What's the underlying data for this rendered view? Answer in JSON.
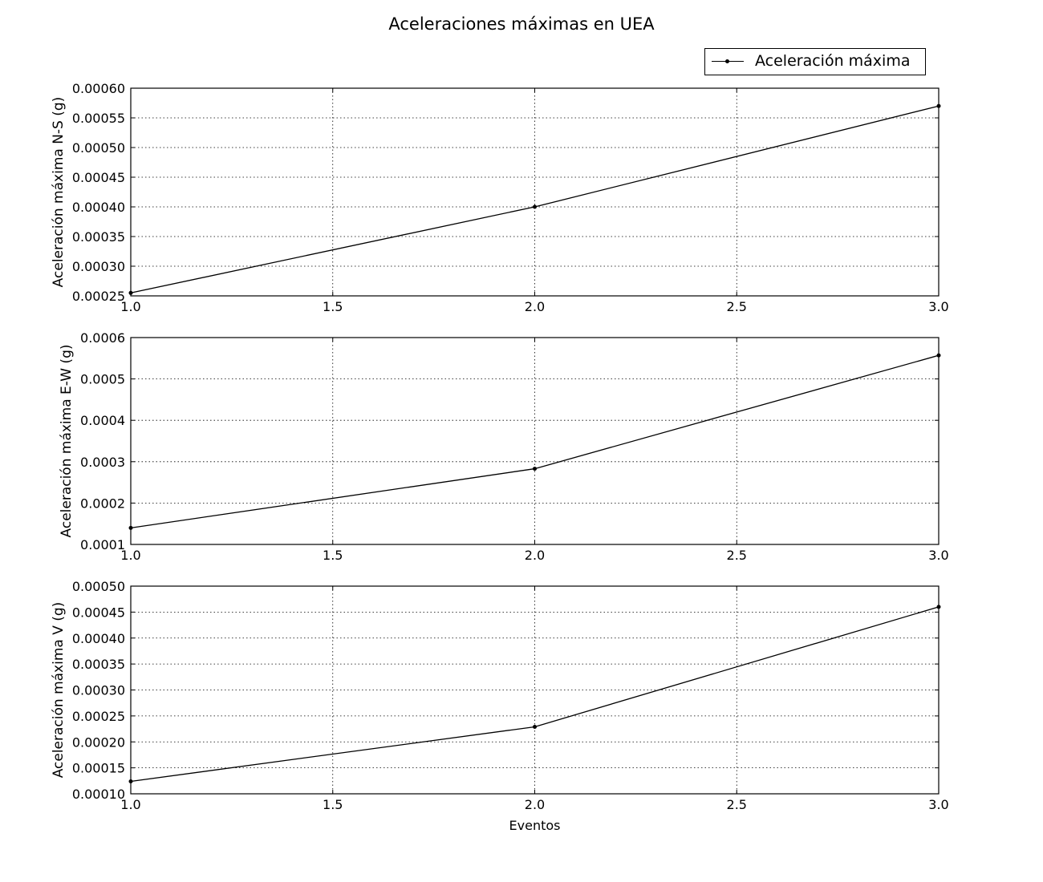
{
  "figure": {
    "title": "Aceleraciones máximas en UEA",
    "legend": {
      "label": "Aceleración máxima",
      "placement": "top-right"
    }
  },
  "chart_data": [
    {
      "type": "line",
      "ylabel": "Aceleración máxima N-S (g)",
      "xlabel": "",
      "x": [
        1.0,
        2.0,
        3.0
      ],
      "series": [
        {
          "name": "Aceleración máxima",
          "values": [
            0.000255,
            0.0004,
            0.00057
          ]
        }
      ],
      "xlim": [
        1.0,
        3.0
      ],
      "ylim": [
        0.00025,
        0.0006
      ],
      "xticks": [
        "1.0",
        "1.5",
        "2.0",
        "2.5",
        "3.0"
      ],
      "yticks": [
        "0.00025",
        "0.00030",
        "0.00035",
        "0.00040",
        "0.00045",
        "0.00050",
        "0.00055",
        "0.00060"
      ],
      "grid": true
    },
    {
      "type": "line",
      "ylabel": "Aceleración máxima E-W (g)",
      "xlabel": "",
      "x": [
        1.0,
        2.0,
        3.0
      ],
      "series": [
        {
          "name": "Aceleración máxima",
          "values": [
            0.00014,
            0.000283,
            0.000557
          ]
        }
      ],
      "xlim": [
        1.0,
        3.0
      ],
      "ylim": [
        0.0001,
        0.0006
      ],
      "xticks": [
        "1.0",
        "1.5",
        "2.0",
        "2.5",
        "3.0"
      ],
      "yticks": [
        "0.0001",
        "0.0002",
        "0.0003",
        "0.0004",
        "0.0005",
        "0.0006"
      ],
      "grid": true
    },
    {
      "type": "line",
      "ylabel": "Aceleración máxima V (g)",
      "xlabel": "Eventos",
      "x": [
        1.0,
        2.0,
        3.0
      ],
      "series": [
        {
          "name": "Aceleración máxima",
          "values": [
            0.000124,
            0.000229,
            0.00046
          ]
        }
      ],
      "xlim": [
        1.0,
        3.0
      ],
      "ylim": [
        0.0001,
        0.0005
      ],
      "xticks": [
        "1.0",
        "1.5",
        "2.0",
        "2.5",
        "3.0"
      ],
      "yticks": [
        "0.00010",
        "0.00015",
        "0.00020",
        "0.00025",
        "0.00030",
        "0.00035",
        "0.00040",
        "0.00045",
        "0.00050"
      ],
      "grid": true
    }
  ]
}
